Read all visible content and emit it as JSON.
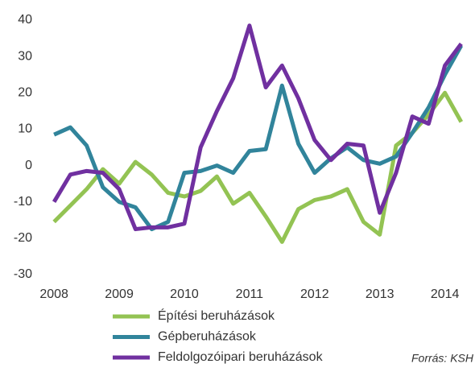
{
  "chart_data": {
    "type": "line",
    "x": [
      2008,
      2008.25,
      2008.5,
      2008.75,
      2009,
      2009.25,
      2009.5,
      2009.75,
      2010,
      2010.25,
      2010.5,
      2010.75,
      2011,
      2011.25,
      2011.5,
      2011.75,
      2012,
      2012.25,
      2012.5,
      2012.75,
      2013,
      2013.25,
      2013.5,
      2013.75,
      2014,
      2014.25
    ],
    "series": [
      {
        "name": "Építési beruházások",
        "color": "#93c353",
        "values": [
          -15.5,
          -11,
          -6.5,
          -1,
          -5,
          1,
          -2.5,
          -7.5,
          -8.5,
          -7,
          -3,
          -10.5,
          -7.5,
          -14,
          -21,
          -12,
          -9.5,
          -8.5,
          -6.5,
          -15.5,
          -19,
          5.5,
          9,
          14,
          20,
          12
        ]
      },
      {
        "name": "Gépberuházások",
        "color": "#31849b",
        "values": [
          8.5,
          10.5,
          5.5,
          -6,
          -10,
          -11.5,
          -17.5,
          -15.5,
          -2,
          -1.5,
          0,
          -2,
          4,
          4.5,
          22,
          6,
          -2,
          2,
          5,
          1.5,
          0.5,
          2.5,
          9,
          16,
          25,
          33
        ]
      },
      {
        "name": "Feldolgozóipari beruházások",
        "color": "#7030a0",
        "values": [
          -10,
          -2.5,
          -1.5,
          -2,
          -6.5,
          -17.5,
          -17,
          -17,
          -16,
          5,
          15,
          24,
          38.5,
          21.5,
          27.5,
          18.5,
          7,
          1.5,
          6,
          5.5,
          -13,
          -2,
          13.5,
          11.5,
          27.5,
          33.5
        ]
      }
    ],
    "xlim": [
      2007.85,
      2014.4
    ],
    "xticks": [
      2008,
      2009,
      2010,
      2011,
      2012,
      2013,
      2014
    ],
    "ylim": [
      -30,
      40
    ],
    "yticks": [
      -30,
      -20,
      -10,
      0,
      10,
      20,
      30,
      40
    ],
    "annotation": "Forrás: KSH"
  }
}
